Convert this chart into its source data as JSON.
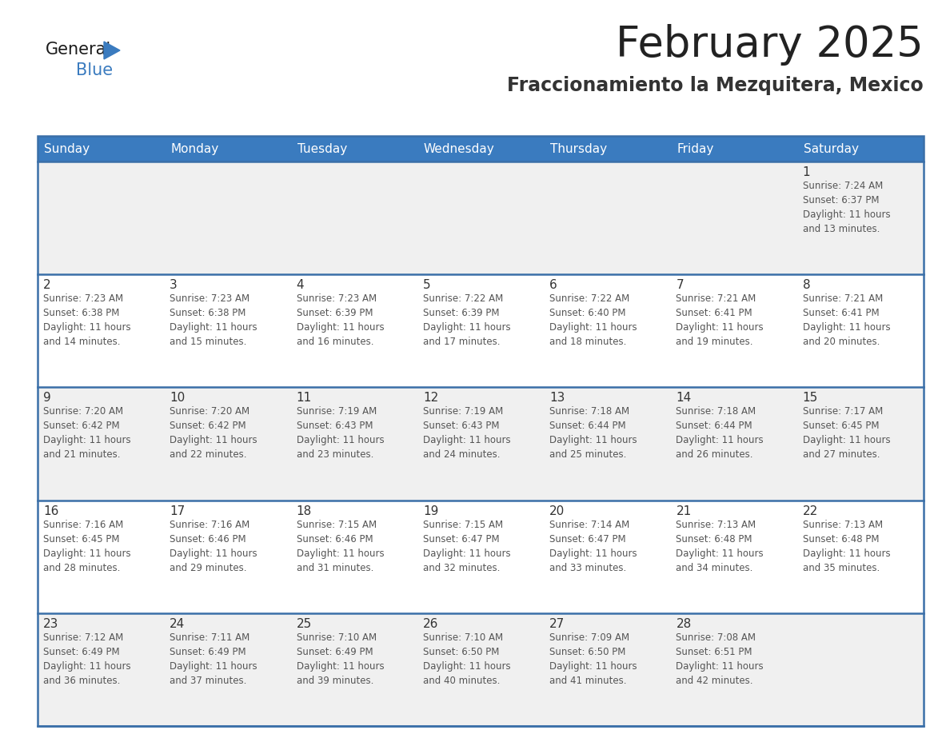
{
  "title": "February 2025",
  "subtitle": "Fraccionamiento la Mezquitera, Mexico",
  "header_bg_color": "#3a7bbf",
  "header_text_color": "#ffffff",
  "cell_bg_row0": "#f0f0f0",
  "cell_bg_row1": "#ffffff",
  "cell_bg_row2": "#f0f0f0",
  "cell_bg_row3": "#ffffff",
  "cell_bg_row4": "#f0f0f0",
  "grid_line_color": "#3a6fa8",
  "day_number_color": "#333333",
  "cell_text_color": "#555555",
  "title_color": "#222222",
  "subtitle_color": "#333333",
  "logo_general_color": "#1a1a1a",
  "logo_blue_color": "#3a7bbf",
  "logo_triangle_color": "#3a7bbf",
  "days_of_week": [
    "Sunday",
    "Monday",
    "Tuesday",
    "Wednesday",
    "Thursday",
    "Friday",
    "Saturday"
  ],
  "weeks": [
    [
      {
        "day": null,
        "sunrise": null,
        "sunset": null,
        "daylight_line1": null,
        "daylight_line2": null
      },
      {
        "day": null,
        "sunrise": null,
        "sunset": null,
        "daylight_line1": null,
        "daylight_line2": null
      },
      {
        "day": null,
        "sunrise": null,
        "sunset": null,
        "daylight_line1": null,
        "daylight_line2": null
      },
      {
        "day": null,
        "sunrise": null,
        "sunset": null,
        "daylight_line1": null,
        "daylight_line2": null
      },
      {
        "day": null,
        "sunrise": null,
        "sunset": null,
        "daylight_line1": null,
        "daylight_line2": null
      },
      {
        "day": null,
        "sunrise": null,
        "sunset": null,
        "daylight_line1": null,
        "daylight_line2": null
      },
      {
        "day": "1",
        "sunrise": "Sunrise: 7:24 AM",
        "sunset": "Sunset: 6:37 PM",
        "daylight_line1": "Daylight: 11 hours",
        "daylight_line2": "and 13 minutes."
      }
    ],
    [
      {
        "day": "2",
        "sunrise": "Sunrise: 7:23 AM",
        "sunset": "Sunset: 6:38 PM",
        "daylight_line1": "Daylight: 11 hours",
        "daylight_line2": "and 14 minutes."
      },
      {
        "day": "3",
        "sunrise": "Sunrise: 7:23 AM",
        "sunset": "Sunset: 6:38 PM",
        "daylight_line1": "Daylight: 11 hours",
        "daylight_line2": "and 15 minutes."
      },
      {
        "day": "4",
        "sunrise": "Sunrise: 7:23 AM",
        "sunset": "Sunset: 6:39 PM",
        "daylight_line1": "Daylight: 11 hours",
        "daylight_line2": "and 16 minutes."
      },
      {
        "day": "5",
        "sunrise": "Sunrise: 7:22 AM",
        "sunset": "Sunset: 6:39 PM",
        "daylight_line1": "Daylight: 11 hours",
        "daylight_line2": "and 17 minutes."
      },
      {
        "day": "6",
        "sunrise": "Sunrise: 7:22 AM",
        "sunset": "Sunset: 6:40 PM",
        "daylight_line1": "Daylight: 11 hours",
        "daylight_line2": "and 18 minutes."
      },
      {
        "day": "7",
        "sunrise": "Sunrise: 7:21 AM",
        "sunset": "Sunset: 6:41 PM",
        "daylight_line1": "Daylight: 11 hours",
        "daylight_line2": "and 19 minutes."
      },
      {
        "day": "8",
        "sunrise": "Sunrise: 7:21 AM",
        "sunset": "Sunset: 6:41 PM",
        "daylight_line1": "Daylight: 11 hours",
        "daylight_line2": "and 20 minutes."
      }
    ],
    [
      {
        "day": "9",
        "sunrise": "Sunrise: 7:20 AM",
        "sunset": "Sunset: 6:42 PM",
        "daylight_line1": "Daylight: 11 hours",
        "daylight_line2": "and 21 minutes."
      },
      {
        "day": "10",
        "sunrise": "Sunrise: 7:20 AM",
        "sunset": "Sunset: 6:42 PM",
        "daylight_line1": "Daylight: 11 hours",
        "daylight_line2": "and 22 minutes."
      },
      {
        "day": "11",
        "sunrise": "Sunrise: 7:19 AM",
        "sunset": "Sunset: 6:43 PM",
        "daylight_line1": "Daylight: 11 hours",
        "daylight_line2": "and 23 minutes."
      },
      {
        "day": "12",
        "sunrise": "Sunrise: 7:19 AM",
        "sunset": "Sunset: 6:43 PM",
        "daylight_line1": "Daylight: 11 hours",
        "daylight_line2": "and 24 minutes."
      },
      {
        "day": "13",
        "sunrise": "Sunrise: 7:18 AM",
        "sunset": "Sunset: 6:44 PM",
        "daylight_line1": "Daylight: 11 hours",
        "daylight_line2": "and 25 minutes."
      },
      {
        "day": "14",
        "sunrise": "Sunrise: 7:18 AM",
        "sunset": "Sunset: 6:44 PM",
        "daylight_line1": "Daylight: 11 hours",
        "daylight_line2": "and 26 minutes."
      },
      {
        "day": "15",
        "sunrise": "Sunrise: 7:17 AM",
        "sunset": "Sunset: 6:45 PM",
        "daylight_line1": "Daylight: 11 hours",
        "daylight_line2": "and 27 minutes."
      }
    ],
    [
      {
        "day": "16",
        "sunrise": "Sunrise: 7:16 AM",
        "sunset": "Sunset: 6:45 PM",
        "daylight_line1": "Daylight: 11 hours",
        "daylight_line2": "and 28 minutes."
      },
      {
        "day": "17",
        "sunrise": "Sunrise: 7:16 AM",
        "sunset": "Sunset: 6:46 PM",
        "daylight_line1": "Daylight: 11 hours",
        "daylight_line2": "and 29 minutes."
      },
      {
        "day": "18",
        "sunrise": "Sunrise: 7:15 AM",
        "sunset": "Sunset: 6:46 PM",
        "daylight_line1": "Daylight: 11 hours",
        "daylight_line2": "and 31 minutes."
      },
      {
        "day": "19",
        "sunrise": "Sunrise: 7:15 AM",
        "sunset": "Sunset: 6:47 PM",
        "daylight_line1": "Daylight: 11 hours",
        "daylight_line2": "and 32 minutes."
      },
      {
        "day": "20",
        "sunrise": "Sunrise: 7:14 AM",
        "sunset": "Sunset: 6:47 PM",
        "daylight_line1": "Daylight: 11 hours",
        "daylight_line2": "and 33 minutes."
      },
      {
        "day": "21",
        "sunrise": "Sunrise: 7:13 AM",
        "sunset": "Sunset: 6:48 PM",
        "daylight_line1": "Daylight: 11 hours",
        "daylight_line2": "and 34 minutes."
      },
      {
        "day": "22",
        "sunrise": "Sunrise: 7:13 AM",
        "sunset": "Sunset: 6:48 PM",
        "daylight_line1": "Daylight: 11 hours",
        "daylight_line2": "and 35 minutes."
      }
    ],
    [
      {
        "day": "23",
        "sunrise": "Sunrise: 7:12 AM",
        "sunset": "Sunset: 6:49 PM",
        "daylight_line1": "Daylight: 11 hours",
        "daylight_line2": "and 36 minutes."
      },
      {
        "day": "24",
        "sunrise": "Sunrise: 7:11 AM",
        "sunset": "Sunset: 6:49 PM",
        "daylight_line1": "Daylight: 11 hours",
        "daylight_line2": "and 37 minutes."
      },
      {
        "day": "25",
        "sunrise": "Sunrise: 7:10 AM",
        "sunset": "Sunset: 6:49 PM",
        "daylight_line1": "Daylight: 11 hours",
        "daylight_line2": "and 39 minutes."
      },
      {
        "day": "26",
        "sunrise": "Sunrise: 7:10 AM",
        "sunset": "Sunset: 6:50 PM",
        "daylight_line1": "Daylight: 11 hours",
        "daylight_line2": "and 40 minutes."
      },
      {
        "day": "27",
        "sunrise": "Sunrise: 7:09 AM",
        "sunset": "Sunset: 6:50 PM",
        "daylight_line1": "Daylight: 11 hours",
        "daylight_line2": "and 41 minutes."
      },
      {
        "day": "28",
        "sunrise": "Sunrise: 7:08 AM",
        "sunset": "Sunset: 6:51 PM",
        "daylight_line1": "Daylight: 11 hours",
        "daylight_line2": "and 42 minutes."
      },
      {
        "day": null,
        "sunrise": null,
        "sunset": null,
        "daylight_line1": null,
        "daylight_line2": null
      }
    ]
  ],
  "row_bg_colors": [
    "#f0f0f0",
    "#ffffff",
    "#f0f0f0",
    "#ffffff",
    "#f0f0f0"
  ]
}
